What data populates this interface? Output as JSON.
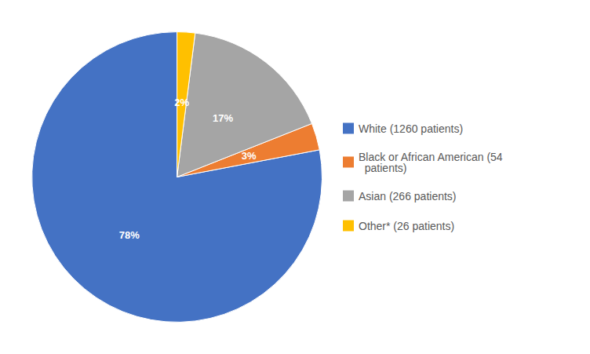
{
  "chart_data": {
    "type": "pie",
    "categories": [
      "White (1260 patients)",
      "Black or African American (54\n  patients)",
      "Asian (266 patients)",
      "Other* (26 patients)"
    ],
    "values": [
      78,
      3,
      17,
      2
    ],
    "value_labels": [
      "78%",
      "3%",
      "17%",
      "2%"
    ],
    "colors": [
      "#4472C4",
      "#ED7D31",
      "#A5A5A5",
      "#FFC000"
    ],
    "data_labels": true,
    "legend": "right"
  }
}
